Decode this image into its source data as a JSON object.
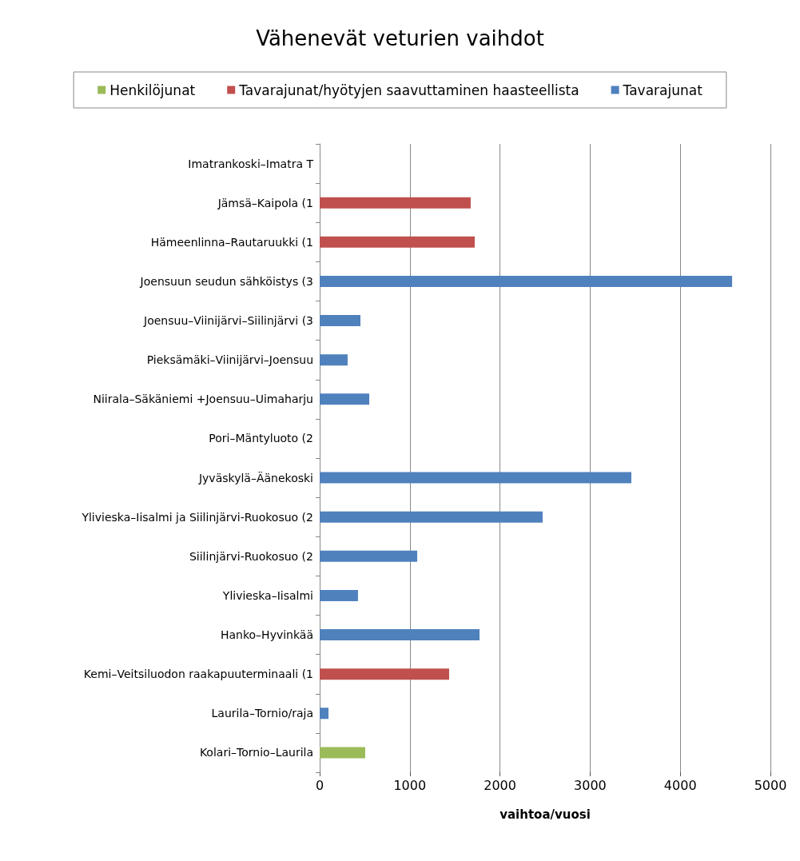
{
  "chart_data": {
    "type": "bar",
    "title": "Vähenevät veturien vaihdot",
    "xlabel": "vaihtoa/vuosi",
    "orientation": "horizontal",
    "stacked": true,
    "categories": [
      "Imatrankoski–Imatra T",
      "Jämsä–Kaipola (1",
      "Hämeenlinna–Rautaruukki (1",
      "Joensuun seudun sähköistys (3",
      "Joensuu–Viinijärvi–Siilinjärvi (3",
      "Pieksämäki–Viinijärvi–Joensuu",
      "Niirala–Säkäniemi +Joensuu–Uimaharju",
      "Pori–Mäntyluoto (2",
      "Jyväskylä–Äänekoski",
      "Ylivieska–Iisalmi ja Siilinjärvi-Ruokosuo (2",
      "Siilinjärvi-Ruokosuo (2",
      "Ylivieska–Iisalmi",
      "Hanko–Hyvinkää",
      "Kemi–Veitsiluodon raakapuuterminaali (1",
      "Laurila–Tornio/raja",
      "Kolari–Tornio–Laurila"
    ],
    "series": [
      {
        "name": "Henkilöjunat",
        "color": "#9bbb59",
        "values": [
          null,
          null,
          null,
          null,
          null,
          null,
          null,
          null,
          null,
          null,
          null,
          null,
          null,
          null,
          null,
          505
        ]
      },
      {
        "name": "Tavarajunat/hyötyjen saavuttaminen haasteellista",
        "color": "#c0504d",
        "values": [
          null,
          1675,
          1720,
          null,
          null,
          null,
          null,
          null,
          null,
          null,
          null,
          null,
          null,
          1436,
          null,
          null
        ]
      },
      {
        "name": "Tavarajunat",
        "color": "#4f81bd",
        "values": [
          null,
          null,
          null,
          4575,
          452,
          310,
          550,
          null,
          3457,
          2473,
          1082,
          425,
          1773,
          null,
          98,
          null
        ]
      }
    ],
    "xlim": [
      0,
      5000
    ],
    "xticks": [
      0,
      1000,
      2000,
      3000,
      4000,
      5000
    ],
    "grid": "x",
    "legend": "top"
  }
}
